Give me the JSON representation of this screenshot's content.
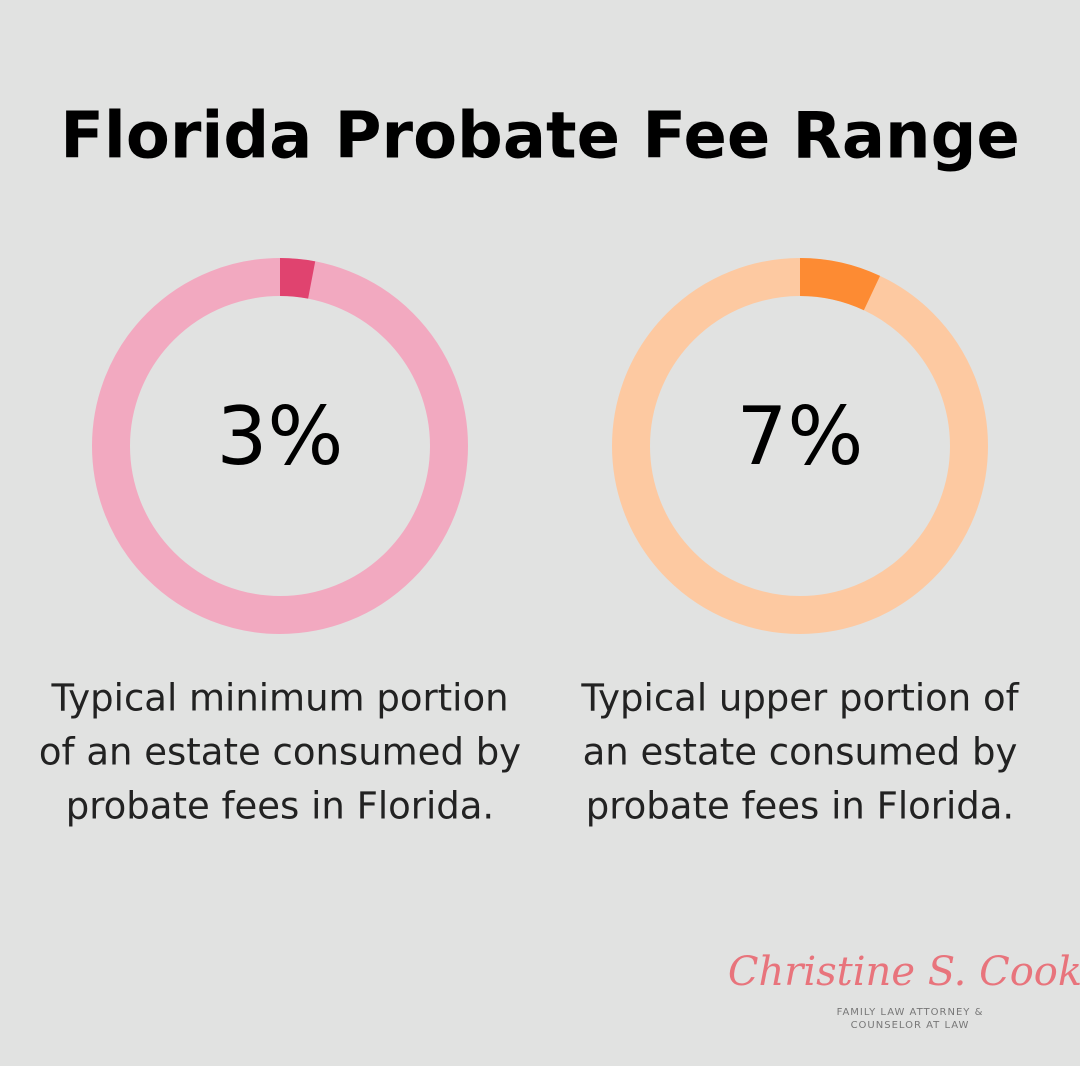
{
  "title": "Florida Probate Fee Range",
  "chart_data": [
    {
      "type": "donut",
      "values": [
        3
      ],
      "value_labels": [
        "3%"
      ],
      "ylim": [
        0,
        100
      ],
      "color": "#e0436f",
      "track_color": "#f2a9c0",
      "caption": [
        "Typical minimum portion",
        "of an estate consumed by",
        "probate fees in Florida."
      ]
    },
    {
      "type": "donut",
      "values": [
        7
      ],
      "value_labels": [
        "7%"
      ],
      "ylim": [
        0,
        100
      ],
      "color": "#fd8b33",
      "track_color": "#fdc9a1",
      "caption": [
        "Typical upper portion of",
        "an estate consumed by",
        "probate fees in Florida."
      ]
    }
  ],
  "logo": {
    "name": "Christine S. Cook",
    "tagline": [
      "FAMILY LAW ATTORNEY &",
      "COUNSELOR AT LAW"
    ]
  }
}
